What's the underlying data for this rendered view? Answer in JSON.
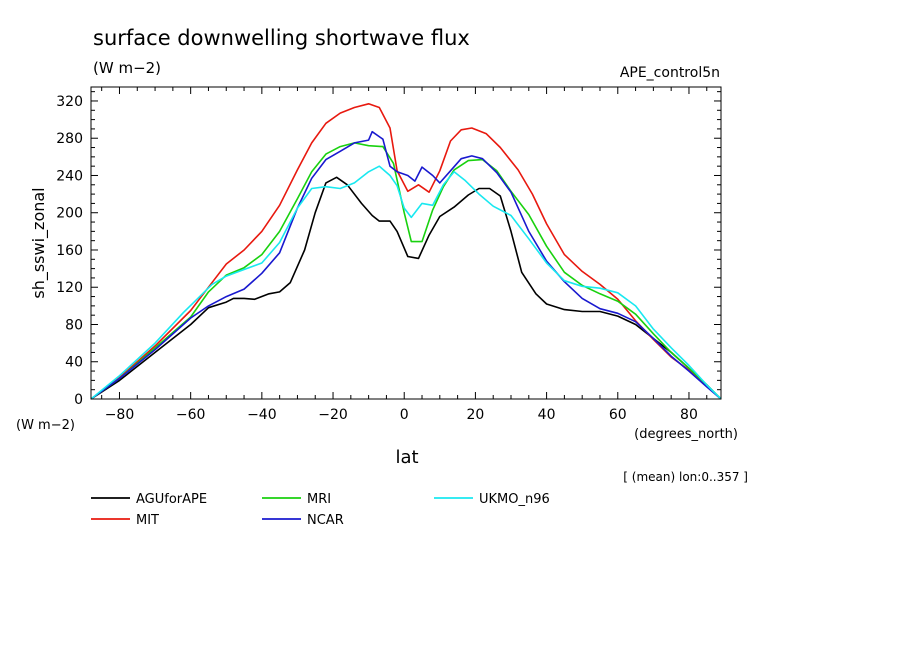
{
  "chart_data": {
    "type": "line",
    "title": "surface downwelling shortwave flux",
    "units": "(W m−2)",
    "experiment": "APE_control5n",
    "ylabel": "sh_sswi_zonal",
    "yunits": "(W m−2)",
    "xlabel": "lat",
    "xunits": "(degrees_north)",
    "note": "[ (mean) lon:0..357 ]",
    "xlim": [
      -88,
      89
    ],
    "ylim": [
      0,
      335
    ],
    "xticks": [
      -80,
      -60,
      -40,
      -20,
      0,
      20,
      40,
      60,
      80
    ],
    "yticks": [
      0,
      40,
      80,
      120,
      160,
      200,
      240,
      280,
      320
    ],
    "grid": false,
    "legend_position": "bottom",
    "series": [
      {
        "name": "AGUforAPE",
        "color": "#000000",
        "points": [
          [
            -88,
            0
          ],
          [
            -80,
            20
          ],
          [
            -70,
            50
          ],
          [
            -60,
            80
          ],
          [
            -55,
            98
          ],
          [
            -50,
            104
          ],
          [
            -48,
            108
          ],
          [
            -45,
            108
          ],
          [
            -42,
            107
          ],
          [
            -38,
            113
          ],
          [
            -35,
            115
          ],
          [
            -32,
            125
          ],
          [
            -28,
            160
          ],
          [
            -25,
            200
          ],
          [
            -22,
            232
          ],
          [
            -19,
            238
          ],
          [
            -16,
            230
          ],
          [
            -12,
            210
          ],
          [
            -9,
            197
          ],
          [
            -7,
            191
          ],
          [
            -4,
            191
          ],
          [
            -2,
            180
          ],
          [
            1,
            153
          ],
          [
            4,
            151
          ],
          [
            7,
            176
          ],
          [
            10,
            196
          ],
          [
            14,
            206
          ],
          [
            18,
            219
          ],
          [
            21,
            226
          ],
          [
            24,
            226
          ],
          [
            27,
            218
          ],
          [
            30,
            180
          ],
          [
            33,
            136
          ],
          [
            37,
            113
          ],
          [
            40,
            102
          ],
          [
            45,
            96
          ],
          [
            50,
            94
          ],
          [
            55,
            94
          ],
          [
            60,
            89
          ],
          [
            65,
            80
          ],
          [
            70,
            65
          ],
          [
            75,
            50
          ],
          [
            80,
            33
          ],
          [
            85,
            15
          ],
          [
            89,
            0
          ]
        ]
      },
      {
        "name": "MIT",
        "color": "#e8190f",
        "points": [
          [
            -88,
            0
          ],
          [
            -80,
            23
          ],
          [
            -70,
            57
          ],
          [
            -60,
            95
          ],
          [
            -55,
            120
          ],
          [
            -50,
            145
          ],
          [
            -45,
            160
          ],
          [
            -40,
            180
          ],
          [
            -35,
            208
          ],
          [
            -30,
            246
          ],
          [
            -26,
            275
          ],
          [
            -22,
            296
          ],
          [
            -18,
            307
          ],
          [
            -14,
            313
          ],
          [
            -10,
            317
          ],
          [
            -7,
            313
          ],
          [
            -4,
            291
          ],
          [
            -2,
            245
          ],
          [
            1,
            223
          ],
          [
            4,
            230
          ],
          [
            7,
            222
          ],
          [
            10,
            245
          ],
          [
            13,
            277
          ],
          [
            16,
            289
          ],
          [
            19,
            291
          ],
          [
            23,
            285
          ],
          [
            27,
            270
          ],
          [
            32,
            246
          ],
          [
            36,
            220
          ],
          [
            40,
            188
          ],
          [
            45,
            155
          ],
          [
            50,
            137
          ],
          [
            55,
            123
          ],
          [
            60,
            107
          ],
          [
            65,
            84
          ],
          [
            70,
            64
          ],
          [
            75,
            45
          ],
          [
            80,
            31
          ],
          [
            85,
            15
          ],
          [
            89,
            0
          ]
        ]
      },
      {
        "name": "MRI",
        "color": "#19d10f",
        "points": [
          [
            -88,
            0
          ],
          [
            -80,
            22
          ],
          [
            -70,
            55
          ],
          [
            -60,
            88
          ],
          [
            -55,
            115
          ],
          [
            -50,
            133
          ],
          [
            -45,
            141
          ],
          [
            -40,
            155
          ],
          [
            -35,
            180
          ],
          [
            -30,
            215
          ],
          [
            -26,
            244
          ],
          [
            -22,
            263
          ],
          [
            -18,
            271
          ],
          [
            -14,
            275
          ],
          [
            -10,
            272
          ],
          [
            -6,
            271
          ],
          [
            -3,
            253
          ],
          [
            0,
            200
          ],
          [
            2,
            169
          ],
          [
            5,
            169
          ],
          [
            8,
            203
          ],
          [
            11,
            228
          ],
          [
            14,
            246
          ],
          [
            18,
            256
          ],
          [
            22,
            257
          ],
          [
            26,
            245
          ],
          [
            30,
            223
          ],
          [
            35,
            198
          ],
          [
            40,
            164
          ],
          [
            45,
            136
          ],
          [
            50,
            122
          ],
          [
            55,
            113
          ],
          [
            60,
            105
          ],
          [
            65,
            91
          ],
          [
            70,
            70
          ],
          [
            75,
            50
          ],
          [
            80,
            33
          ],
          [
            85,
            15
          ],
          [
            89,
            0
          ]
        ]
      },
      {
        "name": "NCAR",
        "color": "#1919cf",
        "points": [
          [
            -88,
            0
          ],
          [
            -80,
            22
          ],
          [
            -70,
            53
          ],
          [
            -60,
            87
          ],
          [
            -55,
            100
          ],
          [
            -50,
            110
          ],
          [
            -45,
            118
          ],
          [
            -40,
            135
          ],
          [
            -35,
            157
          ],
          [
            -30,
            205
          ],
          [
            -26,
            237
          ],
          [
            -22,
            257
          ],
          [
            -18,
            266
          ],
          [
            -14,
            275
          ],
          [
            -10,
            278
          ],
          [
            -9,
            287
          ],
          [
            -6,
            279
          ],
          [
            -4,
            250
          ],
          [
            -2,
            244
          ],
          [
            1,
            240
          ],
          [
            3,
            234
          ],
          [
            5,
            249
          ],
          [
            8,
            240
          ],
          [
            10,
            232
          ],
          [
            13,
            245
          ],
          [
            16,
            258
          ],
          [
            19,
            261
          ],
          [
            22,
            258
          ],
          [
            26,
            243
          ],
          [
            30,
            222
          ],
          [
            35,
            180
          ],
          [
            40,
            148
          ],
          [
            45,
            126
          ],
          [
            50,
            108
          ],
          [
            55,
            97
          ],
          [
            60,
            92
          ],
          [
            65,
            83
          ],
          [
            70,
            65
          ],
          [
            75,
            46
          ],
          [
            80,
            30
          ],
          [
            85,
            13
          ],
          [
            89,
            0
          ]
        ]
      },
      {
        "name": "UKMO_n96",
        "color": "#19e8f0",
        "points": [
          [
            -88,
            0
          ],
          [
            -80,
            25
          ],
          [
            -70,
            60
          ],
          [
            -62,
            93
          ],
          [
            -58,
            108
          ],
          [
            -54,
            123
          ],
          [
            -50,
            132
          ],
          [
            -45,
            139
          ],
          [
            -40,
            146
          ],
          [
            -35,
            168
          ],
          [
            -30,
            205
          ],
          [
            -26,
            226
          ],
          [
            -22,
            228
          ],
          [
            -18,
            226
          ],
          [
            -14,
            232
          ],
          [
            -10,
            244
          ],
          [
            -7,
            250
          ],
          [
            -4,
            240
          ],
          [
            -2,
            229
          ],
          [
            0,
            205
          ],
          [
            2,
            195
          ],
          [
            5,
            210
          ],
          [
            8,
            208
          ],
          [
            11,
            230
          ],
          [
            14,
            244
          ],
          [
            17,
            235
          ],
          [
            21,
            220
          ],
          [
            25,
            207
          ],
          [
            30,
            197
          ],
          [
            35,
            172
          ],
          [
            40,
            146
          ],
          [
            45,
            127
          ],
          [
            50,
            121
          ],
          [
            55,
            119
          ],
          [
            60,
            114
          ],
          [
            65,
            100
          ],
          [
            70,
            75
          ],
          [
            75,
            55
          ],
          [
            80,
            36
          ],
          [
            85,
            15
          ],
          [
            89,
            0
          ]
        ]
      }
    ]
  }
}
